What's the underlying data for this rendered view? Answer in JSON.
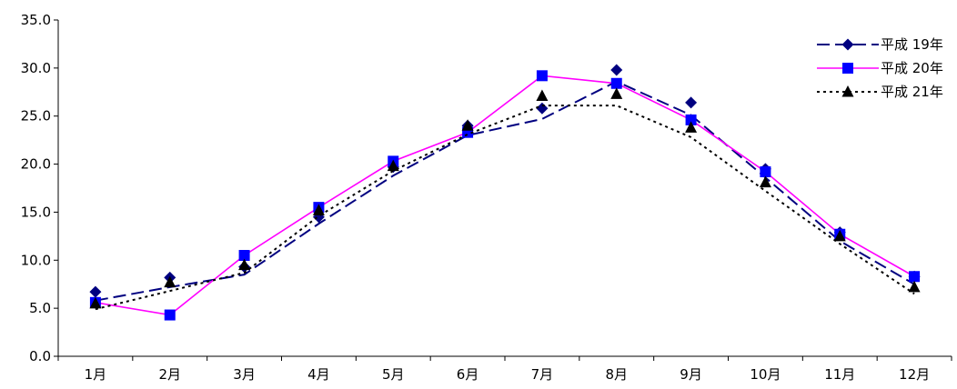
{
  "chart_data": {
    "type": "line",
    "categories": [
      "1月",
      "2月",
      "3月",
      "4月",
      "5月",
      "6月",
      "7月",
      "8月",
      "9月",
      "10月",
      "11月",
      "12月"
    ],
    "ylim": [
      0,
      35
    ],
    "yticks": [
      "0.0",
      "5.0",
      "10.0",
      "15.0",
      "20.0",
      "25.0",
      "30.0",
      "35.0"
    ],
    "grid": false,
    "legend_position": "top-right",
    "series": [
      {
        "name": "平成 19年",
        "color": "#000080",
        "line_style": "dashed",
        "marker": "diamond",
        "line_values": [
          5.8,
          7.2,
          8.5,
          13.8,
          18.8,
          23.0,
          24.7,
          28.6,
          25.1,
          18.6,
          12.0,
          7.5
        ],
        "marker_values": [
          6.7,
          8.2,
          9.3,
          14.5,
          19.7,
          24.0,
          25.8,
          29.8,
          26.4,
          19.5,
          12.9,
          8.3
        ]
      },
      {
        "name": "平成 20年",
        "color": "#FF00FF",
        "line_style": "solid",
        "marker": "square",
        "marker_color": "#0000FF",
        "line_values": [
          5.6,
          4.3,
          10.5,
          15.5,
          20.3,
          23.3,
          29.2,
          28.4,
          24.6,
          19.2,
          12.7,
          8.3
        ],
        "marker_values": [
          5.6,
          4.3,
          10.5,
          15.5,
          20.3,
          23.3,
          29.2,
          28.4,
          24.6,
          19.2,
          12.7,
          8.3
        ]
      },
      {
        "name": "平成 21年",
        "color": "#000000",
        "line_style": "dotted",
        "marker": "triangle",
        "line_values": [
          4.9,
          6.8,
          8.7,
          14.6,
          19.3,
          23.1,
          26.1,
          26.1,
          22.8,
          17.2,
          11.7,
          6.5
        ],
        "marker_values": [
          5.5,
          7.7,
          9.5,
          15.2,
          19.8,
          24.0,
          27.1,
          27.3,
          23.8,
          18.1,
          12.5,
          7.2
        ]
      }
    ]
  }
}
